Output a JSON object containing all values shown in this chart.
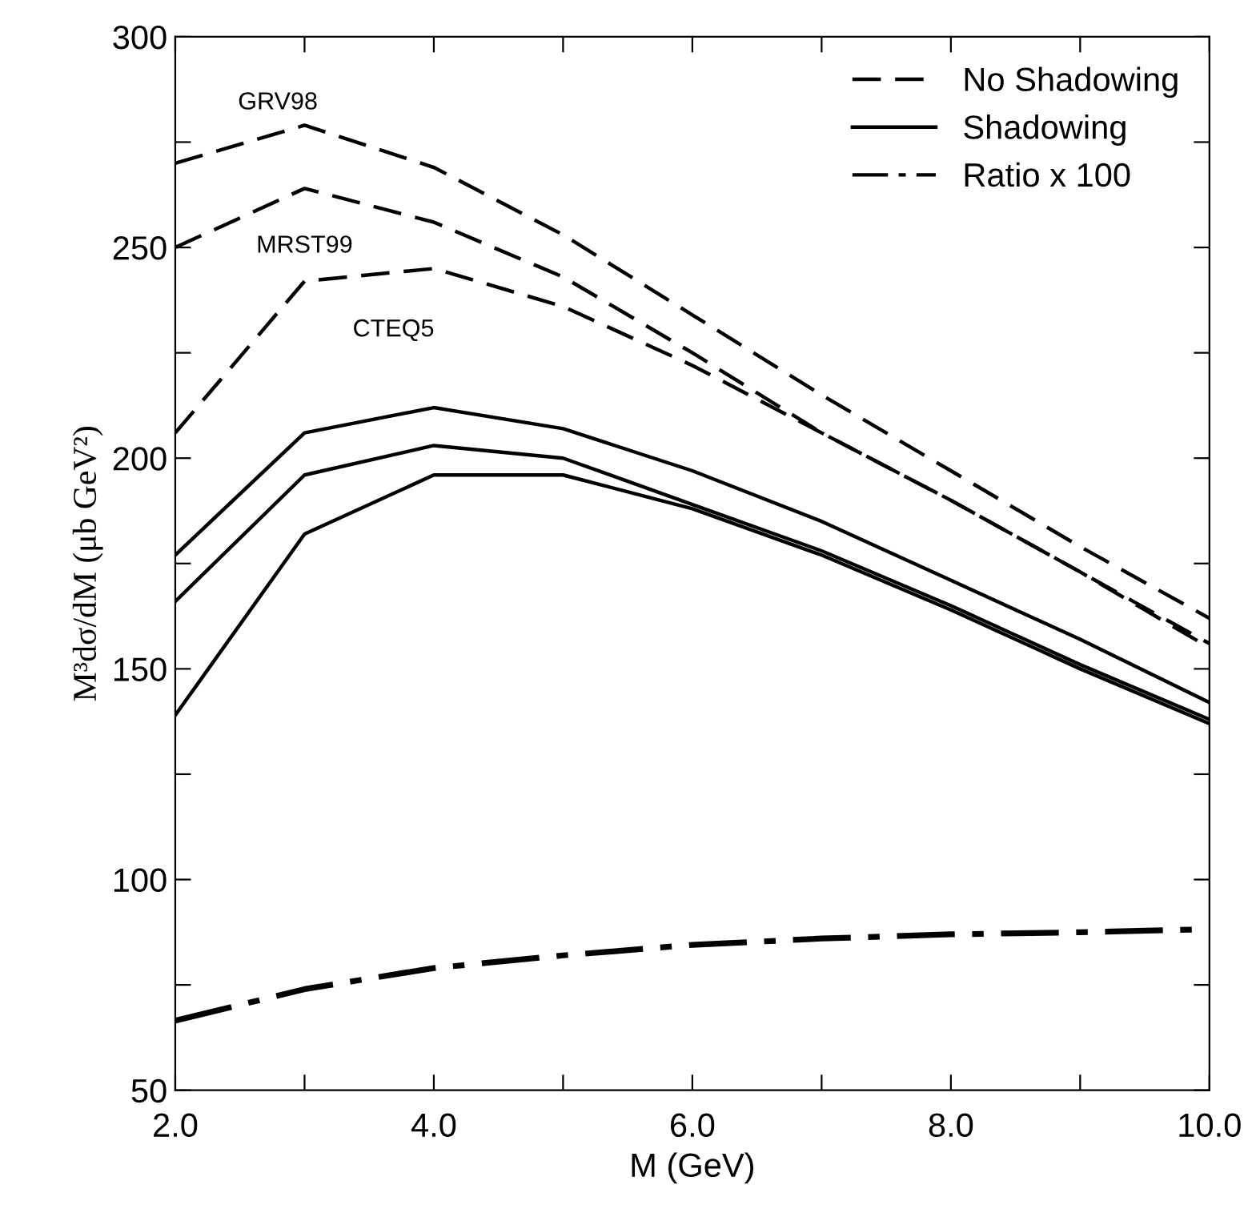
{
  "chart_data": {
    "type": "line",
    "xlabel": "M (GeV)",
    "ylabel": "M³dσ/dM (μb GeV²)",
    "x": [
      2,
      3,
      4,
      5,
      6,
      7,
      8,
      9,
      10
    ],
    "xlim": [
      2,
      10
    ],
    "ylim": [
      50,
      300
    ],
    "xticks": [
      {
        "value": 2,
        "label": "2.0"
      },
      {
        "value": 3,
        "label": null
      },
      {
        "value": 4,
        "label": "4.0"
      },
      {
        "value": 5,
        "label": null
      },
      {
        "value": 6,
        "label": "6.0"
      },
      {
        "value": 7,
        "label": null
      },
      {
        "value": 8,
        "label": "8.0"
      },
      {
        "value": 9,
        "label": null
      },
      {
        "value": 10,
        "label": "10.0"
      }
    ],
    "yticks": [
      50,
      {
        "value": 75,
        "label": null
      },
      100,
      {
        "value": 125,
        "label": null
      },
      150,
      {
        "value": 175,
        "label": null
      },
      200,
      {
        "value": 225,
        "label": null
      },
      250,
      {
        "value": 275,
        "label": null
      },
      300
    ],
    "grid": false,
    "legend": "top right",
    "marker": "none",
    "series": [
      {
        "name": "No Shadowing",
        "color": "#000000",
        "line_style": "dashed",
        "values": [
          270,
          279,
          269,
          253,
          234,
          215,
          197,
          179,
          162
        ]
      },
      {
        "color": "#000000",
        "line_style": "dashed",
        "values": [
          250,
          264,
          256,
          243,
          225,
          206,
          190,
          173,
          156
        ]
      },
      {
        "color": "#000000",
        "line_style": "dashed",
        "values": [
          206,
          242,
          245,
          236,
          222,
          206,
          190,
          173,
          155
        ]
      },
      {
        "name": "Shadowing",
        "color": "#000000",
        "line_style": "solid",
        "values": [
          177,
          206,
          212,
          207,
          197,
          185,
          171,
          157,
          142
        ]
      },
      {
        "color": "#000000",
        "line_style": "solid",
        "values": [
          166,
          196,
          203,
          200,
          189,
          178,
          165,
          151,
          138
        ]
      },
      {
        "color": "#000000",
        "line_style": "solid",
        "values": [
          139,
          182,
          196,
          196,
          188,
          177,
          164,
          150,
          137
        ]
      },
      {
        "name": "Ratio x 100",
        "color": "#000000",
        "line_style": "dashdot",
        "values": [
          66.5,
          74,
          79,
          82,
          84.5,
          86,
          87,
          87.5,
          88.2
        ]
      }
    ],
    "annotations": [
      "GRV98",
      "MRST99",
      "CTEQ5"
    ]
  }
}
